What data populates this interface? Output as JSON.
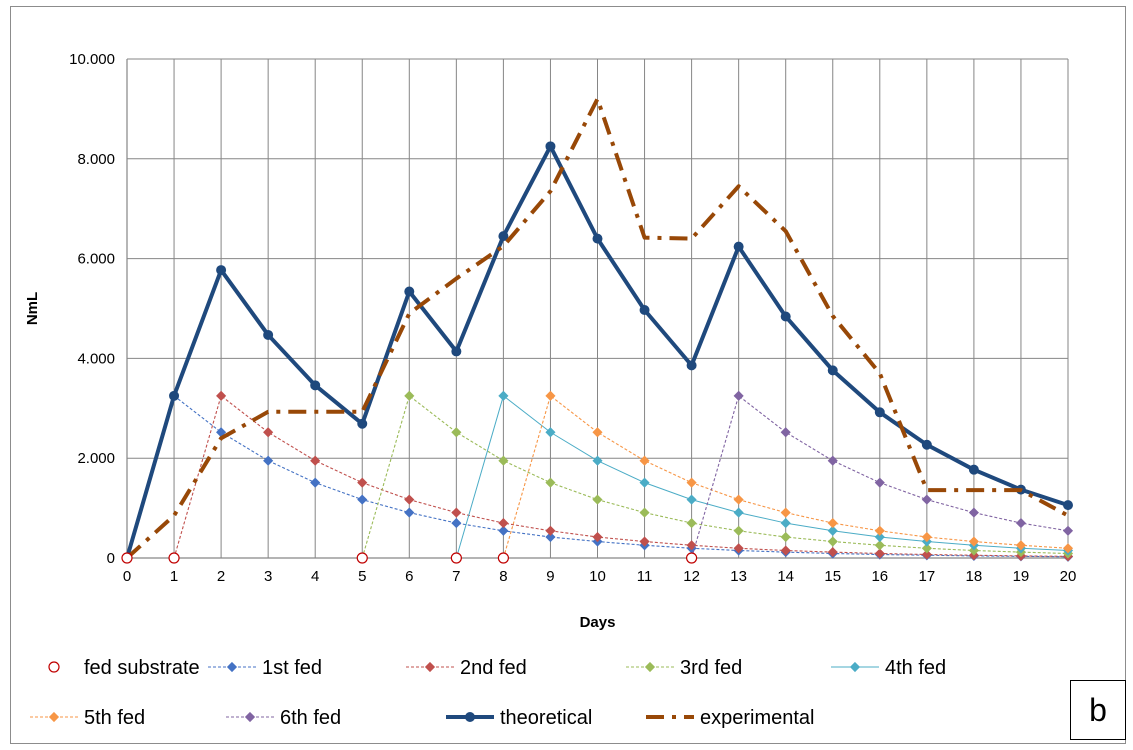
{
  "chart_data": {
    "type": "line",
    "title": "",
    "xlabel": "Days",
    "ylabel": "NmL",
    "x": [
      0,
      1,
      2,
      3,
      4,
      5,
      6,
      7,
      8,
      9,
      10,
      11,
      12,
      13,
      14,
      15,
      16,
      17,
      18,
      19,
      20
    ],
    "ylim": [
      0,
      10000
    ],
    "y_ticks": [
      0,
      2000,
      4000,
      6000,
      8000,
      10000
    ],
    "y_tick_labels": [
      "0",
      "2.000",
      "4.000",
      "6.000",
      "8.000",
      "10.000"
    ],
    "grid": true,
    "legend_position": "bottom",
    "series": [
      {
        "name": "fed substrate",
        "color": "#c00000",
        "style": "markers-hollow-circle",
        "x": [
          0,
          1,
          5,
          7,
          8,
          12
        ],
        "y": [
          0,
          0,
          0,
          0,
          0,
          0
        ]
      },
      {
        "name": "1st fed",
        "color": "#4472c4",
        "style": "dashed-diamond",
        "x": [
          1,
          2,
          3,
          4,
          5,
          6,
          7,
          8,
          9,
          10,
          11,
          12,
          13,
          14,
          15,
          16,
          17,
          18,
          19,
          20
        ],
        "y": [
          3250,
          2520,
          1950,
          1510,
          1170,
          910,
          700,
          545,
          420,
          330,
          255,
          195,
          150,
          118,
          90,
          70,
          55,
          42,
          33,
          25
        ]
      },
      {
        "name": "2nd fed",
        "color": "#c0504d",
        "style": "dashed-diamond",
        "x": [
          1,
          2,
          3,
          4,
          5,
          6,
          7,
          8,
          9,
          10,
          11,
          12,
          13,
          14,
          15,
          16,
          17,
          18,
          19,
          20
        ],
        "y": [
          0,
          3250,
          2520,
          1950,
          1510,
          1170,
          910,
          700,
          545,
          420,
          330,
          255,
          195,
          150,
          118,
          90,
          70,
          55,
          42,
          33
        ]
      },
      {
        "name": "3rd fed",
        "color": "#9bbb59",
        "style": "dashed-diamond",
        "x": [
          5,
          6,
          7,
          8,
          9,
          10,
          11,
          12,
          13,
          14,
          15,
          16,
          17,
          18,
          19,
          20
        ],
        "y": [
          0,
          3250,
          2520,
          1950,
          1510,
          1170,
          910,
          700,
          545,
          420,
          330,
          255,
          195,
          150,
          118,
          90
        ]
      },
      {
        "name": "4th fed",
        "color": "#4bacc6",
        "style": "solid-thin-diamond",
        "x": [
          7,
          8,
          9,
          10,
          11,
          12,
          13,
          14,
          15,
          16,
          17,
          18,
          19,
          20
        ],
        "y": [
          0,
          3250,
          2520,
          1950,
          1510,
          1170,
          910,
          700,
          545,
          420,
          330,
          255,
          195,
          150
        ]
      },
      {
        "name": "5th fed",
        "color": "#f79646",
        "style": "dashed-diamond",
        "x": [
          8,
          9,
          10,
          11,
          12,
          13,
          14,
          15,
          16,
          17,
          18,
          19,
          20
        ],
        "y": [
          0,
          3250,
          2520,
          1950,
          1510,
          1170,
          910,
          700,
          545,
          420,
          330,
          255,
          195
        ]
      },
      {
        "name": "6th fed",
        "color": "#8064a2",
        "style": "dashed-diamond",
        "x": [
          12,
          13,
          14,
          15,
          16,
          17,
          18,
          19,
          20
        ],
        "y": [
          0,
          3250,
          2520,
          1950,
          1510,
          1170,
          910,
          700,
          545
        ]
      },
      {
        "name": "theoretical",
        "color": "#1f497d",
        "style": "thick-solid-circle",
        "x": [
          0,
          1,
          2,
          3,
          4,
          5,
          6,
          7,
          8,
          9,
          10,
          11,
          12,
          13,
          14,
          15,
          16,
          17,
          18,
          19,
          20
        ],
        "y": [
          0,
          3250,
          5770,
          4470,
          3460,
          2690,
          5340,
          4140,
          6450,
          8250,
          6400,
          4970,
          3860,
          6240,
          4840,
          3760,
          2920,
          2270,
          1770,
          1370,
          1060
        ]
      },
      {
        "name": "experimental",
        "color": "#984807",
        "style": "thick-dashdot",
        "x": [
          0,
          1,
          2,
          3,
          4,
          5,
          6,
          7,
          8,
          9,
          10,
          11,
          12,
          13,
          14,
          15,
          16,
          17,
          18,
          19,
          20
        ],
        "y": [
          0,
          850,
          2400,
          2930,
          2930,
          2930,
          4900,
          5600,
          6250,
          7350,
          9200,
          6420,
          6400,
          7450,
          6550,
          4850,
          3700,
          1360,
          1360,
          1360,
          850
        ]
      }
    ]
  },
  "panel_label": "b"
}
